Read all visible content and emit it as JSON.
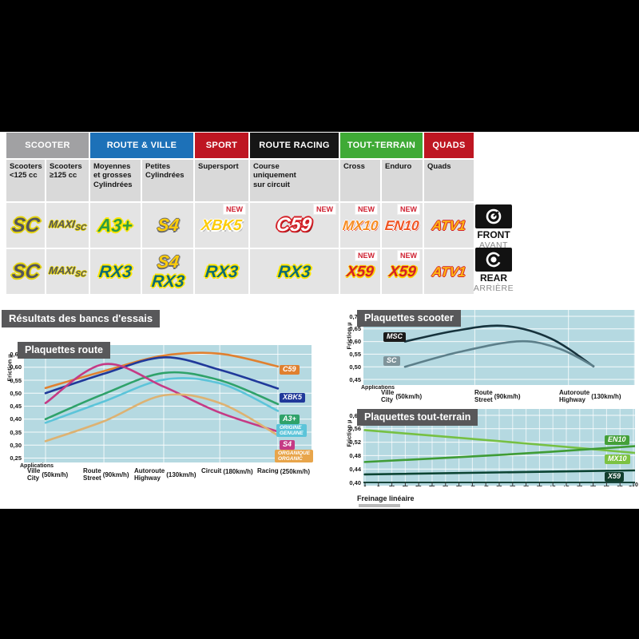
{
  "table": {
    "headers": [
      {
        "label": "SCOOTER",
        "color": "#a1a1a3",
        "span": 2
      },
      {
        "label": "ROUTE & VILLE",
        "color": "#1d71b8",
        "span": 2
      },
      {
        "label": "SPORT",
        "color": "#be1622",
        "span": 1
      },
      {
        "label": "ROUTE RACING",
        "color": "#161616",
        "span": 1
      },
      {
        "label": "TOUT-TERRAIN",
        "color": "#3faa36",
        "span": 2
      },
      {
        "label": "QUADS",
        "color": "#be1622",
        "span": 1
      }
    ],
    "subheaders": [
      "Scooters\n<125 cc",
      "Scooters\n≥125 cc",
      "Moyennes\net grosses\nCylindrées",
      "Petites\nCylindrées",
      "Supersport",
      "Course\nuniquement\nsur circuit",
      "Cross",
      "Enduro",
      "Quads"
    ],
    "new_label": "NEW",
    "rows": [
      {
        "side": "front",
        "cells": [
          {
            "logos": [
              {
                "id": "sc",
                "text": "SC"
              }
            ]
          },
          {
            "logos": [
              {
                "id": "maxisc",
                "text": "MAXI",
                "sub": "SC"
              }
            ]
          },
          {
            "logos": [
              {
                "id": "a3",
                "text": "A3+"
              }
            ]
          },
          {
            "logos": [
              {
                "id": "s4",
                "text": "S4"
              }
            ]
          },
          {
            "logos": [
              {
                "id": "xbk5",
                "text": "XBK5"
              }
            ],
            "new": true
          },
          {
            "logos": [
              {
                "id": "c59",
                "text": "C59"
              }
            ],
            "new": true
          },
          {
            "logos": [
              {
                "id": "mx10",
                "text": "MX10"
              }
            ],
            "new": true
          },
          {
            "logos": [
              {
                "id": "en10",
                "text": "EN10"
              }
            ],
            "new": true
          },
          {
            "logos": [
              {
                "id": "atv1",
                "text": "ATV1"
              }
            ]
          }
        ]
      },
      {
        "side": "rear",
        "cells": [
          {
            "logos": [
              {
                "id": "sc",
                "text": "SC"
              }
            ]
          },
          {
            "logos": [
              {
                "id": "maxisc",
                "text": "MAXI",
                "sub": "SC"
              }
            ]
          },
          {
            "logos": [
              {
                "id": "rx3",
                "text": "RX3"
              }
            ]
          },
          {
            "logos": [
              {
                "id": "s4",
                "text": "S4"
              },
              {
                "id": "rx3",
                "text": "RX3"
              }
            ]
          },
          {
            "logos": [
              {
                "id": "rx3",
                "text": "RX3"
              }
            ]
          },
          {
            "logos": [
              {
                "id": "rx3",
                "text": "RX3"
              }
            ]
          },
          {
            "logos": [
              {
                "id": "x59",
                "text": "X59"
              }
            ],
            "new": true
          },
          {
            "logos": [
              {
                "id": "x59",
                "text": "X59"
              }
            ],
            "new": true
          },
          {
            "logos": [
              {
                "id": "atv1",
                "text": "ATV1"
              }
            ]
          }
        ]
      }
    ]
  },
  "badges": {
    "front": {
      "label": "FRONT",
      "sublabel": "AVANT"
    },
    "rear": {
      "label": "REAR",
      "sublabel": "ARRIÈRE"
    }
  },
  "section_title": "Résultats des bancs d'essais",
  "chart_data": [
    {
      "id": "route",
      "type": "line",
      "title": "Plaquettes route",
      "ylabel": "Friction µ",
      "ylim": [
        0.25,
        0.65
      ],
      "yticks": [
        "0,65",
        "0,60",
        "0,55",
        "0,50",
        "0,45",
        "0,40",
        "0,35",
        "0,30",
        "0,25"
      ],
      "xaxis_caption": "Applications",
      "x_labels": [
        {
          "top": "Ville",
          "bottom": "City",
          "speed": "(50km/h)"
        },
        {
          "top": "Route",
          "bottom": "Street",
          "speed": "(90km/h)"
        },
        {
          "top": "Autoroute",
          "bottom": "Highway",
          "speed": "(130km/h)"
        },
        {
          "top": "Circuit",
          "speed": "(180km/h)"
        },
        {
          "top": "Racing",
          "speed": "(250km/h)"
        }
      ],
      "categories_x": [
        0.075,
        0.278,
        0.486,
        0.681,
        0.883
      ],
      "series": [
        {
          "name": "C59",
          "color": "#e0802f",
          "values": [
            0.52,
            0.585,
            0.645,
            0.652,
            0.603
          ],
          "label_lines": [
            "C59"
          ],
          "label_color": "#e0802f"
        },
        {
          "name": "XBK5",
          "color": "#20399a",
          "values": [
            0.5,
            0.575,
            0.638,
            0.59,
            0.518
          ],
          "label_lines": [
            "XBK5"
          ],
          "label_color": "#20399a"
        },
        {
          "name": "A3+",
          "color": "#2fa26a",
          "values": [
            0.4,
            0.497,
            0.578,
            0.55,
            0.458
          ],
          "label_lines": [
            "A3+"
          ],
          "label_color": "#2fa26a"
        },
        {
          "name": "ORIGINE / GENUINE",
          "color": "#5cc4d9",
          "values": [
            0.386,
            0.468,
            0.552,
            0.538,
            0.432
          ],
          "label_lines": [
            "ORIGINE",
            "GENUINE"
          ],
          "label_color": "#5cc4d9"
        },
        {
          "name": "S4",
          "color": "#c53a85",
          "values": [
            0.462,
            0.612,
            0.525,
            0.425,
            0.352
          ],
          "label_lines": [
            "S4"
          ],
          "label_color": "#c53a85"
        },
        {
          "name": "ORGANIQUE / ORGANIC",
          "color": "#ddb272",
          "values": [
            0.315,
            0.392,
            0.492,
            0.462,
            0.338
          ],
          "label_lines": [
            "ORGANIQUE",
            "ORGANIC"
          ],
          "label_color": "#e8a54b"
        }
      ]
    },
    {
      "id": "scooter",
      "type": "line",
      "title": "Plaquettes scooter",
      "ylabel": "Friction µ",
      "ylim": [
        0.45,
        0.7
      ],
      "yticks": [
        "0,70",
        "0,65",
        "0,60",
        "0,55",
        "0,50",
        "0,45"
      ],
      "xaxis_caption": "Applications",
      "x_labels": [
        {
          "top": "Ville",
          "bottom": "City",
          "speed": "(50km/h)"
        },
        {
          "top": "Route",
          "bottom": "Street",
          "speed": "(90km/h)"
        },
        {
          "top": "Autoroute",
          "bottom": "Highway",
          "speed": "(130km/h)"
        }
      ],
      "series": [
        {
          "name": "MSC",
          "color": "#16323c",
          "points": [
            [
              0.153,
              0.6
            ],
            [
              0.34,
              0.643
            ],
            [
              0.518,
              0.662
            ],
            [
              0.69,
              0.612
            ],
            [
              0.847,
              0.502
            ]
          ],
          "label_lines": [
            "MSC"
          ],
          "label_color": "#1a1a1a"
        },
        {
          "name": "SC",
          "color": "#5c7f8a",
          "points": [
            [
              0.153,
              0.5
            ],
            [
              0.35,
              0.558
            ],
            [
              0.574,
              0.601
            ],
            [
              0.72,
              0.572
            ],
            [
              0.847,
              0.503
            ]
          ],
          "label_lines": [
            "SC"
          ],
          "label_color": "#7f949b"
        }
      ]
    },
    {
      "id": "terrain",
      "type": "line",
      "title": "Plaquettes tout-terrain",
      "ylabel": "Friction µ",
      "ylim": [
        0.4,
        0.6
      ],
      "yticks": [
        "0,60",
        "0,56",
        "0,52",
        "0,48",
        "0,44",
        "0,40"
      ],
      "xlabel": "Freinage linéaire",
      "xticks": [
        "0",
        "5",
        "10",
        "15",
        "20",
        "25",
        "30",
        "35",
        "40",
        "45",
        "50",
        "55",
        "60",
        "65",
        "70",
        "75",
        "80",
        "85",
        "90",
        "95",
        "100"
      ],
      "series": [
        {
          "name": "MX10",
          "color": "#76c043",
          "points": [
            [
              0.005,
              0.556
            ],
            [
              0.5,
              0.523
            ],
            [
              1,
              0.488
            ]
          ],
          "label_lines": [
            "MX10"
          ],
          "label_color": "#7cc242"
        },
        {
          "name": "EN10",
          "color": "#3f9c35",
          "points": [
            [
              0.005,
              0.461
            ],
            [
              0.5,
              0.482
            ],
            [
              1,
              0.508
            ]
          ],
          "label_lines": [
            "EN10"
          ],
          "label_color": "#44a038"
        },
        {
          "name": "X59",
          "color": "#0c4433",
          "points": [
            [
              0.005,
              0.424
            ],
            [
              1,
              0.436
            ]
          ],
          "label_lines": [
            "X59"
          ],
          "label_color": "#123f2e"
        }
      ]
    }
  ]
}
